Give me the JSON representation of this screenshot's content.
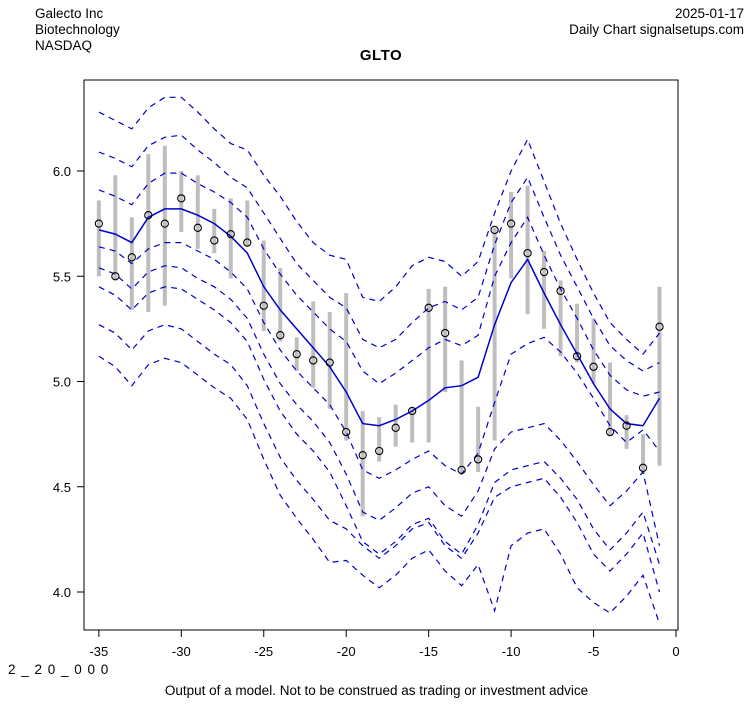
{
  "header": {
    "company": "Galecto Inc",
    "sector": "Biotechnology",
    "exchange": "NASDAQ",
    "date": "2025-01-17",
    "source": "Daily Chart signalsetups.com"
  },
  "title": "GLTO",
  "footer": {
    "model_id": "2 _ 2 0 _ 0 0 0",
    "disclaimer": "Output of a model. Not to be construed as trading or investment advice"
  },
  "colors": {
    "line_blue": "#0000cc",
    "bar_gray": "#bebebe",
    "marker_black": "#000000",
    "axis_black": "#000000"
  },
  "chart_data": {
    "type": "line",
    "title": "GLTO",
    "xlabel": "",
    "ylabel": "",
    "x_ticks": [
      -35,
      -30,
      -25,
      -20,
      -15,
      -10,
      -5,
      0
    ],
    "y_ticks": [
      4.0,
      4.5,
      5.0,
      5.5,
      6.0
    ],
    "xlim": [
      -35.9,
      0.1
    ],
    "ylim": [
      3.82,
      6.43
    ],
    "grid": false,
    "legend": "none",
    "days": [
      -35,
      -34,
      -33,
      -32,
      -31,
      -30,
      -29,
      -28,
      -27,
      -26,
      -25,
      -24,
      -23,
      -22,
      -21,
      -20,
      -19,
      -18,
      -17,
      -16,
      -15,
      -14,
      -13,
      -12,
      -11,
      -10,
      -9,
      -8,
      -7,
      -6,
      -5,
      -4,
      -3,
      -2,
      -1
    ],
    "series": [
      {
        "name": "quantile-upper-3",
        "style": "dashed",
        "values": [
          6.28,
          6.24,
          6.2,
          6.3,
          6.35,
          6.35,
          6.28,
          6.2,
          6.13,
          6.1,
          5.98,
          5.88,
          5.76,
          5.66,
          5.6,
          5.58,
          5.4,
          5.38,
          5.45,
          5.55,
          5.59,
          5.57,
          5.5,
          5.57,
          5.8,
          6.0,
          6.15,
          5.95,
          5.75,
          5.58,
          5.42,
          5.28,
          5.2,
          5.13,
          5.23
        ]
      },
      {
        "name": "quantile-upper-2",
        "style": "dashed",
        "values": [
          6.09,
          6.06,
          6.02,
          6.12,
          6.16,
          6.17,
          6.1,
          6.04,
          5.97,
          5.92,
          5.8,
          5.68,
          5.56,
          5.48,
          5.4,
          5.35,
          5.2,
          5.16,
          5.2,
          5.28,
          5.35,
          5.38,
          5.34,
          5.4,
          5.65,
          5.85,
          5.97,
          5.78,
          5.6,
          5.45,
          5.3,
          5.17,
          5.1,
          5.05,
          5.09
        ]
      },
      {
        "name": "quantile-upper-1",
        "style": "dashed",
        "values": [
          5.91,
          5.88,
          5.84,
          5.94,
          5.99,
          5.99,
          5.94,
          5.9,
          5.85,
          5.78,
          5.63,
          5.51,
          5.41,
          5.33,
          5.25,
          5.19,
          5.05,
          4.99,
          5.04,
          5.1,
          5.16,
          5.2,
          5.17,
          5.22,
          5.5,
          5.66,
          5.78,
          5.6,
          5.44,
          5.3,
          5.15,
          5.03,
          4.96,
          4.93,
          4.95
        ]
      },
      {
        "name": "median-forecast",
        "style": "solid",
        "values": [
          5.72,
          5.7,
          5.66,
          5.78,
          5.82,
          5.82,
          5.79,
          5.75,
          5.69,
          5.61,
          5.45,
          5.34,
          5.25,
          5.16,
          5.07,
          4.95,
          4.8,
          4.79,
          4.82,
          4.86,
          4.91,
          4.97,
          4.98,
          5.02,
          5.27,
          5.47,
          5.58,
          5.42,
          5.27,
          5.13,
          4.99,
          4.87,
          4.8,
          4.79,
          4.92
        ]
      },
      {
        "name": "quantile-lower-1",
        "style": "dashed",
        "values": [
          5.64,
          5.62,
          5.56,
          5.63,
          5.66,
          5.66,
          5.62,
          5.58,
          5.52,
          5.44,
          5.28,
          5.15,
          5.05,
          4.97,
          4.89,
          4.76,
          4.58,
          4.54,
          4.58,
          4.63,
          4.67,
          4.6,
          4.56,
          4.66,
          4.9,
          5.13,
          5.18,
          5.21,
          5.14,
          5.04,
          4.92,
          4.79,
          4.71,
          4.77,
          4.67
        ]
      },
      {
        "name": "quantile-lower-2",
        "style": "dashed",
        "values": [
          5.54,
          5.51,
          5.44,
          5.52,
          5.55,
          5.54,
          5.49,
          5.45,
          5.39,
          5.3,
          5.13,
          4.99,
          4.89,
          4.81,
          4.71,
          4.56,
          4.38,
          4.34,
          4.4,
          4.47,
          4.5,
          4.41,
          4.36,
          4.48,
          4.68,
          4.76,
          4.78,
          4.8,
          4.72,
          4.62,
          4.51,
          4.41,
          4.48,
          4.57,
          4.22
        ]
      },
      {
        "name": "quantile-lower-3",
        "style": "dashed",
        "values": [
          5.45,
          5.41,
          5.34,
          5.42,
          5.45,
          5.44,
          5.39,
          5.34,
          5.28,
          5.19,
          5.01,
          4.86,
          4.75,
          4.67,
          4.57,
          4.41,
          4.24,
          4.18,
          4.24,
          4.32,
          4.35,
          4.24,
          4.18,
          4.32,
          4.52,
          4.58,
          4.6,
          4.62,
          4.54,
          4.44,
          4.3,
          4.2,
          4.28,
          4.38,
          4.13
        ]
      },
      {
        "name": "quantile-lower-4",
        "style": "dashed",
        "values": [
          5.27,
          5.23,
          5.15,
          5.24,
          5.27,
          5.25,
          5.19,
          5.13,
          5.08,
          4.98,
          4.8,
          4.64,
          4.53,
          4.44,
          4.34,
          4.3,
          4.22,
          4.16,
          4.22,
          4.3,
          4.33,
          4.22,
          4.16,
          4.28,
          4.45,
          4.5,
          4.52,
          4.54,
          4.45,
          4.33,
          4.18,
          4.1,
          4.18,
          4.28,
          4.0
        ]
      },
      {
        "name": "quantile-lower-5",
        "style": "dashed",
        "values": [
          5.12,
          5.07,
          4.98,
          5.08,
          5.11,
          5.09,
          5.03,
          4.97,
          4.92,
          4.82,
          4.63,
          4.46,
          4.35,
          4.25,
          4.14,
          4.15,
          4.08,
          4.02,
          4.08,
          4.16,
          4.2,
          4.1,
          4.03,
          4.13,
          3.91,
          4.22,
          4.28,
          4.3,
          4.18,
          4.02,
          3.95,
          3.9,
          3.98,
          4.08,
          3.85
        ]
      }
    ],
    "observed": {
      "high": [
        5.86,
        5.98,
        5.78,
        6.08,
        6.12,
        6.0,
        5.98,
        5.82,
        5.87,
        5.86,
        5.67,
        5.54,
        5.21,
        5.38,
        5.33,
        5.42,
        4.86,
        4.83,
        4.89,
        4.88,
        5.44,
        5.45,
        5.1,
        4.88,
        5.73,
        5.9,
        5.93,
        5.62,
        5.48,
        5.37,
        5.3,
        5.09,
        4.84,
        4.75,
        5.45
      ],
      "low": [
        5.5,
        5.48,
        5.34,
        5.33,
        5.36,
        5.71,
        5.63,
        5.61,
        5.49,
        5.64,
        5.24,
        5.19,
        5.05,
        4.97,
        4.87,
        4.72,
        4.36,
        4.62,
        4.69,
        4.71,
        4.71,
        4.95,
        4.56,
        4.57,
        4.72,
        5.49,
        5.32,
        5.25,
        5.12,
        5.09,
        4.99,
        4.74,
        4.68,
        4.56,
        4.6
      ],
      "close": [
        5.75,
        5.5,
        5.59,
        5.79,
        5.75,
        5.87,
        5.73,
        5.67,
        5.7,
        5.66,
        5.36,
        5.22,
        5.13,
        5.1,
        5.09,
        4.76,
        4.65,
        4.67,
        4.78,
        4.86,
        5.35,
        5.23,
        4.58,
        4.63,
        5.72,
        5.75,
        5.61,
        5.52,
        5.43,
        5.12,
        5.07,
        4.76,
        4.79,
        4.59,
        5.26
      ]
    }
  }
}
